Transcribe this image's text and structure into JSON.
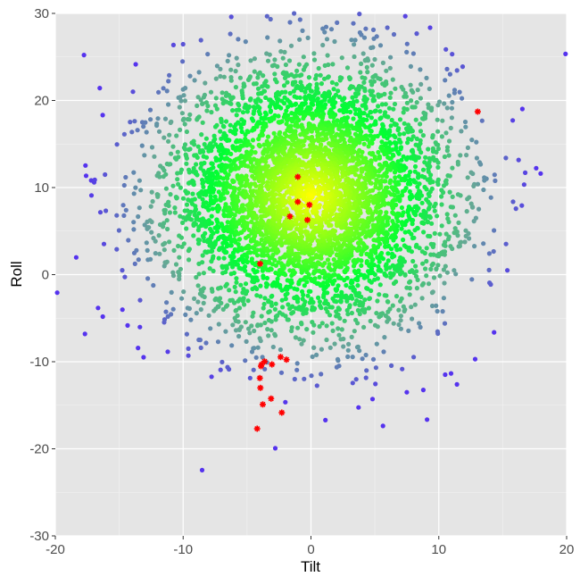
{
  "chart_data": {
    "type": "scatter",
    "xlabel": "Tilt",
    "ylabel": "Roll",
    "xlim": [
      -20,
      20
    ],
    "ylim": [
      -30,
      30
    ],
    "x_ticks": [
      -20,
      -10,
      0,
      10,
      20
    ],
    "y_ticks": [
      -30,
      -20,
      -10,
      0,
      10,
      20,
      30
    ],
    "x_tick_labels": [
      "-20",
      "-10",
      "0",
      "10",
      "20"
    ],
    "y_tick_labels": [
      "-30",
      "-20",
      "-10",
      "0",
      "10",
      "20",
      "30"
    ],
    "grid": true,
    "legend": "none",
    "background_cloud": {
      "n": 5000,
      "center": [
        0,
        9
      ],
      "sd": [
        5.5,
        7.5
      ],
      "colors": [
        "#ffff00",
        "#00ff33",
        "#66a896",
        "#5533ee"
      ]
    },
    "highlighted_points": {
      "color": "#ff0000",
      "marker": "asterisk",
      "points": [
        [
          -1.03,
          11.23
        ],
        [
          -1.03,
          8.36
        ],
        [
          -0.12,
          8.02
        ],
        [
          -1.65,
          6.69
        ],
        [
          -0.28,
          6.28
        ],
        [
          -3.98,
          1.25
        ],
        [
          -2.37,
          -9.46
        ],
        [
          -1.91,
          -9.76
        ],
        [
          -3.63,
          -9.97
        ],
        [
          -3.86,
          -10.31
        ],
        [
          -3.91,
          -10.51
        ],
        [
          -3.05,
          -10.31
        ],
        [
          -4.0,
          -11.88
        ],
        [
          -3.96,
          -13.0
        ],
        [
          -3.12,
          -14.24
        ],
        [
          -3.77,
          -14.9
        ],
        [
          -2.28,
          -15.85
        ],
        [
          -4.21,
          -17.69
        ],
        [
          13.05,
          18.72
        ]
      ]
    }
  }
}
